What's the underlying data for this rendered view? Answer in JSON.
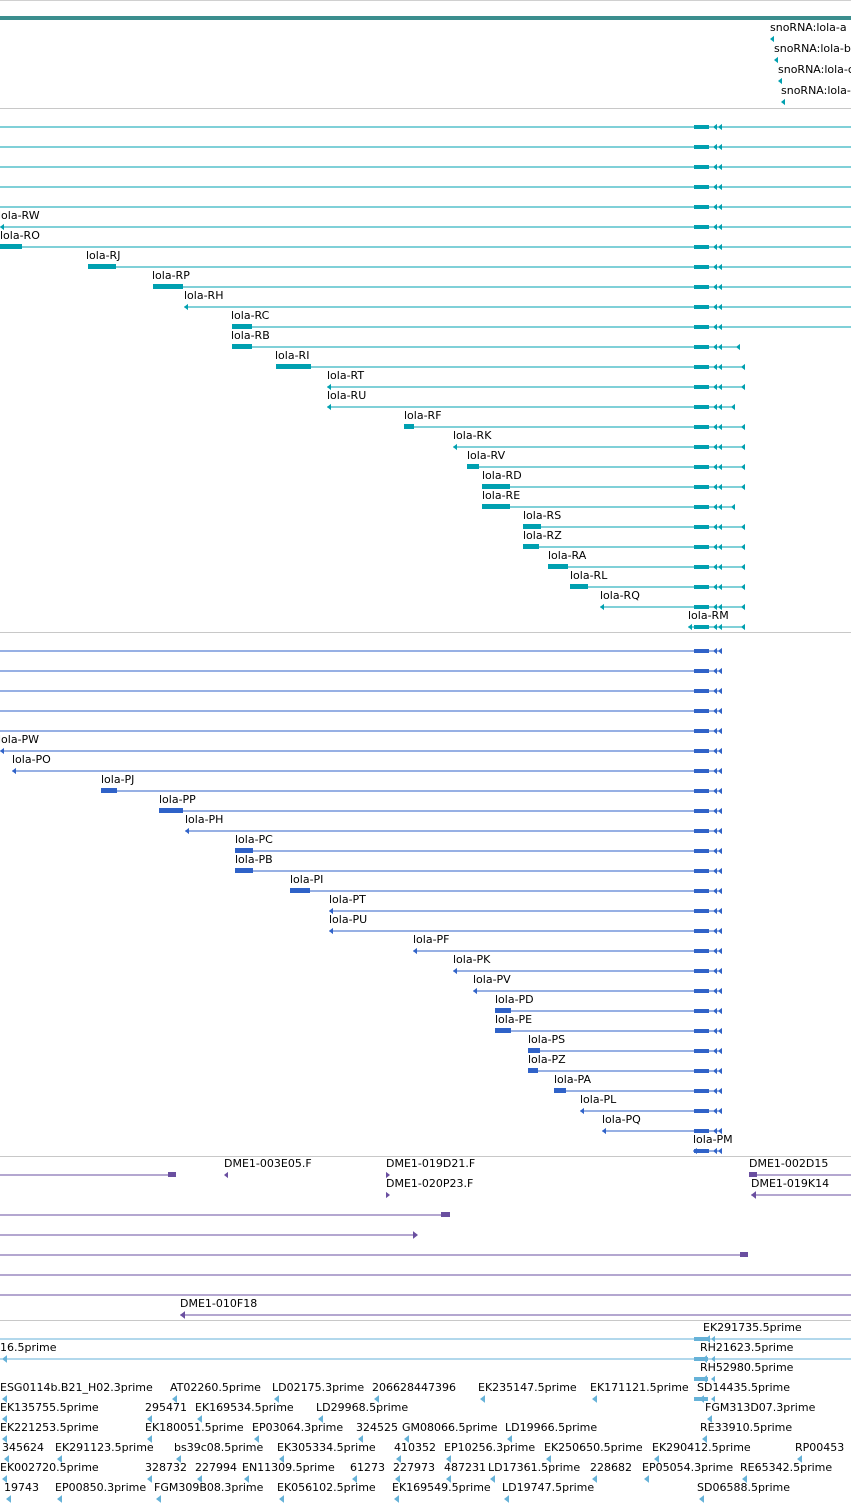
{
  "colors": {
    "snorna": "#00a0b0",
    "rna": "#00a0b0",
    "protein": "#2f62c8",
    "clone": "#6a4fa0",
    "est": "#66b2d8",
    "topbar": "#3b8e8e"
  },
  "snorna_track": {
    "labels": [
      "snoRNA:lola-a",
      "snoRNA:lola-b",
      "snoRNA:lola-c",
      "snoRNA:lola-d"
    ]
  },
  "rna_track": {
    "labels": [
      "lola-RW",
      "lola-RO",
      "lola-RJ",
      "lola-RP",
      "lola-RH",
      "lola-RC",
      "lola-RB",
      "lola-RI",
      "lola-RT",
      "lola-RU",
      "lola-RF",
      "lola-RK",
      "lola-RV",
      "lola-RD",
      "lola-RE",
      "lola-RS",
      "lola-RZ",
      "lola-RA",
      "lola-RL",
      "lola-RQ",
      "lola-RM"
    ]
  },
  "protein_track": {
    "labels": [
      "lola-PW",
      "lola-PO",
      "lola-PJ",
      "lola-PP",
      "lola-PH",
      "lola-PC",
      "lola-PB",
      "lola-PI",
      "lola-PT",
      "lola-PU",
      "lola-PF",
      "lola-PK",
      "lola-PV",
      "lola-PD",
      "lola-PE",
      "lola-PS",
      "lola-PZ",
      "lola-PA",
      "lola-PL",
      "lola-PQ",
      "lola-PM"
    ]
  },
  "clone_track": {
    "labels": [
      "DME1-003E05.F",
      "DME1-019D21.F",
      "DME1-020P23.F",
      "DME1-002D15",
      "DME1-019K14",
      "DME1-010F18"
    ]
  },
  "est_track": {
    "labels": [
      "EK291735.5prime",
      "16.5prime",
      "RH21623.5prime",
      "RH52980.5prime",
      "ESG0114b.B21_H02.3prime",
      "AT02260.5prime",
      "LD02175.3prime",
      "206628447396",
      "EK235147.5prime",
      "EK171121.5prime",
      "SD14435.5prime",
      "EK135755.5prime",
      "295471",
      "EK169534.5prime",
      "LD29968.5prime",
      "FGM313D07.3prime",
      "EK221253.5prime",
      "EK180051.5prime",
      "EP03064.3prime",
      "324525",
      "GM08066.5prime",
      "LD19966.5prime",
      "RE33910.5prime",
      "345624",
      "EK291123.5prime",
      "bs39c08.5prime",
      "EK305334.5prime",
      "410352",
      "EP10256.3prime",
      "EK250650.5prime",
      "EK290412.5prime",
      "RP00453",
      "EK002720.5prime",
      "328732",
      "227994",
      "EN11309.5prime",
      "61273",
      "227973",
      "487231",
      "LD17361.5prime",
      "228682",
      "EP05054.3prime",
      "RE65342.5prime",
      "19743",
      "EP00850.3prime",
      "FGM309B08.3prime",
      "EK056102.5prime",
      "EK169549.5prime",
      "LD19747.5prime",
      "SD06588.5prime"
    ]
  }
}
